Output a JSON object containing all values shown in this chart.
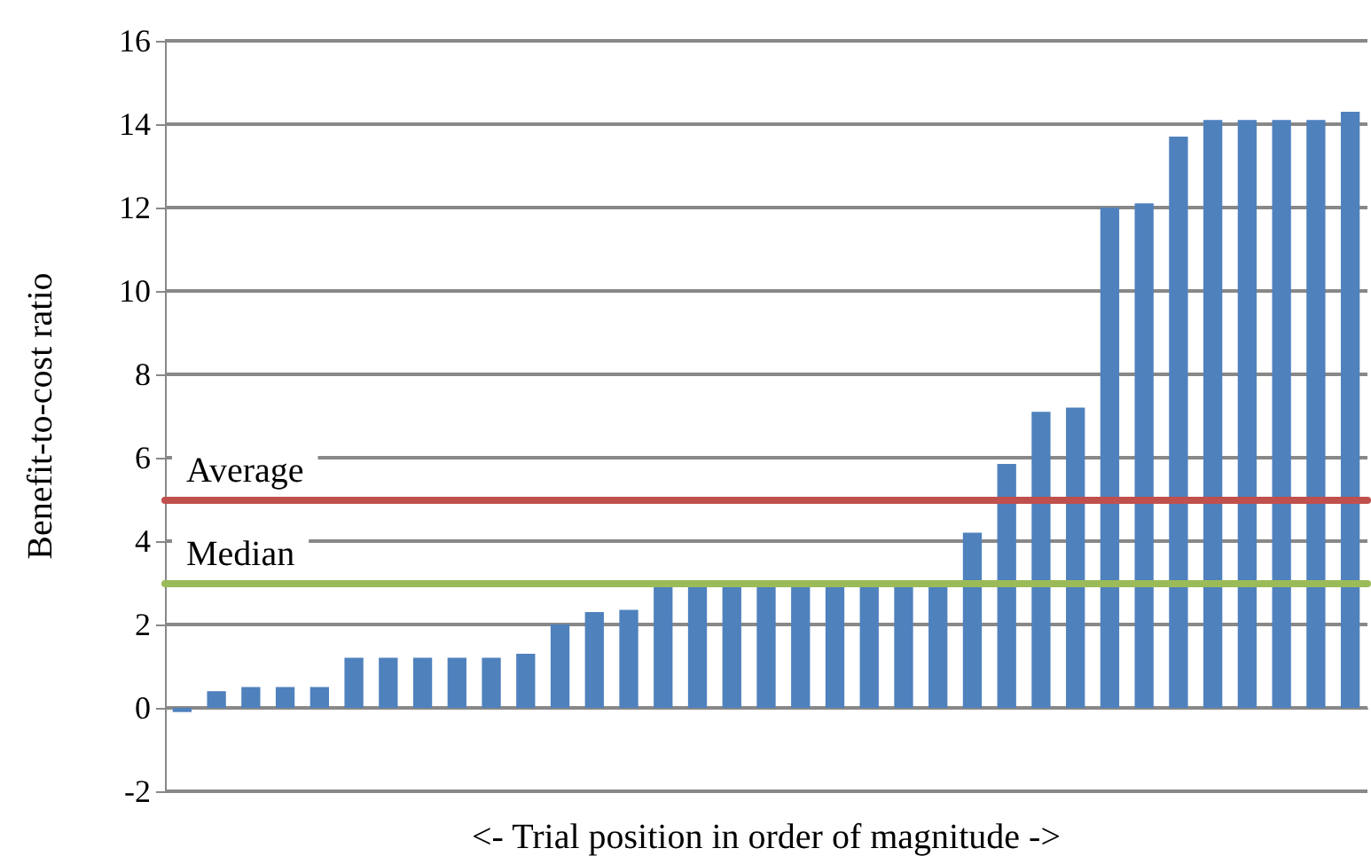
{
  "chart_data": {
    "type": "bar",
    "xlabel": "<- Trial position in order of magnitude ->",
    "ylabel": "Benefit-to-cost ratio",
    "categories": [
      null,
      null,
      null,
      null,
      null,
      null,
      null,
      null,
      null,
      null,
      null,
      null,
      null,
      null,
      null,
      null,
      null,
      null,
      null,
      null,
      null,
      null,
      null,
      null,
      null,
      null,
      null,
      null,
      null,
      null,
      null,
      null,
      null,
      null,
      null
    ],
    "values": [
      -0.1,
      0.4,
      0.5,
      0.5,
      0.5,
      1.2,
      1.2,
      1.2,
      1.2,
      1.2,
      1.3,
      2.0,
      2.3,
      2.35,
      3,
      3,
      3,
      3,
      3,
      3,
      3,
      3,
      3,
      4.2,
      5.85,
      7.1,
      7.2,
      12,
      12.1,
      13.7,
      14.1,
      14.1,
      14.1,
      14.1,
      14.3
    ],
    "color": "#4f81bd",
    "ylim": [
      -2,
      16
    ],
    "yticks": [
      -2,
      0,
      2,
      4,
      6,
      8,
      10,
      12,
      14,
      16
    ],
    "grid": "y",
    "ref_lines": [
      {
        "axis": "y",
        "value": 5,
        "label": "Average",
        "color": "#c0504d"
      },
      {
        "axis": "y",
        "value": 3,
        "label": "Median",
        "color": "#9bbb59"
      }
    ]
  }
}
